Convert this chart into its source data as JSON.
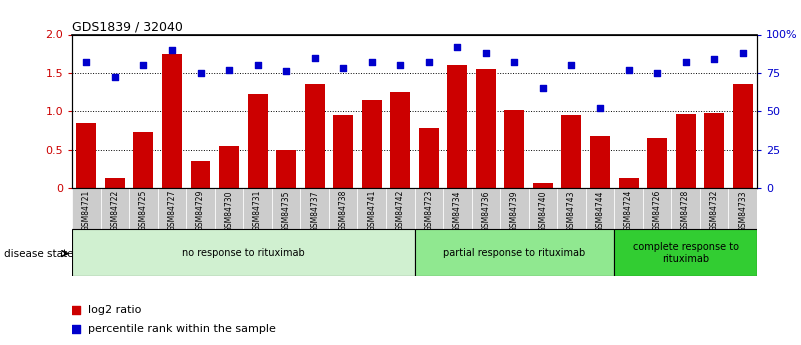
{
  "title": "GDS1839 / 32040",
  "samples": [
    "GSM84721",
    "GSM84722",
    "GSM84725",
    "GSM84727",
    "GSM84729",
    "GSM84730",
    "GSM84731",
    "GSM84735",
    "GSM84737",
    "GSM84738",
    "GSM84741",
    "GSM84742",
    "GSM84723",
    "GSM84734",
    "GSM84736",
    "GSM84739",
    "GSM84740",
    "GSM84743",
    "GSM84744",
    "GSM84724",
    "GSM84726",
    "GSM84728",
    "GSM84732",
    "GSM84733"
  ],
  "log2_ratio": [
    0.85,
    0.13,
    0.73,
    1.75,
    0.35,
    0.55,
    1.23,
    0.5,
    1.35,
    0.95,
    1.15,
    1.25,
    0.78,
    1.6,
    1.55,
    1.02,
    0.06,
    0.95,
    0.68,
    0.13,
    0.65,
    0.97,
    0.98,
    1.35
  ],
  "percentile_pct": [
    82,
    72,
    80,
    90,
    75,
    77,
    80,
    76,
    85,
    78,
    82,
    80,
    82,
    92,
    88,
    82,
    65,
    80,
    52,
    77,
    75,
    82,
    84,
    88
  ],
  "groups": [
    {
      "label": "no response to rituximab",
      "start": 0,
      "end": 12,
      "color": "#d0f0d0"
    },
    {
      "label": "partial response to rituximab",
      "start": 12,
      "end": 19,
      "color": "#90e890"
    },
    {
      "label": "complete response to\nrituximab",
      "start": 19,
      "end": 24,
      "color": "#32cd32"
    }
  ],
  "bar_color": "#cc0000",
  "dot_color": "#0000cc",
  "ylim_left": [
    0,
    2
  ],
  "ylim_right": [
    0,
    100
  ],
  "yticks_left": [
    0,
    0.5,
    1.0,
    1.5,
    2.0
  ],
  "ytick_labels_right": [
    "0",
    "25",
    "50",
    "75",
    "100%"
  ],
  "yticks_right": [
    0,
    25,
    50,
    75,
    100
  ],
  "hlines": [
    0.5,
    1.0,
    1.5
  ],
  "xlabel_color": "#888888",
  "tick_bg_color": "#cccccc"
}
